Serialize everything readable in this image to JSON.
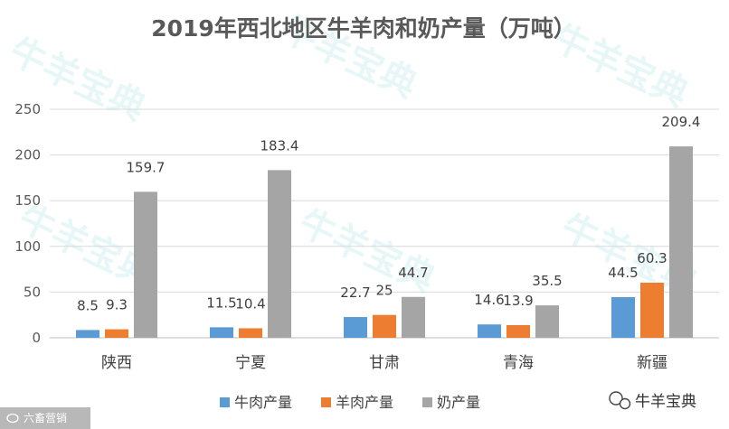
{
  "chart_data": {
    "type": "bar",
    "title": "2019年西北地区牛羊肉和奶产量（万吨）",
    "categories": [
      "陕西",
      "宁夏",
      "甘肃",
      "青海",
      "新疆"
    ],
    "series": [
      {
        "name": "牛肉产量",
        "color": "#5B9BD5",
        "values": [
          8.5,
          11.5,
          22.7,
          14.6,
          44.5
        ]
      },
      {
        "name": "羊肉产量",
        "color": "#ED7D31",
        "values": [
          9.3,
          10.4,
          25,
          13.9,
          60.3
        ]
      },
      {
        "name": "奶产量",
        "color": "#A5A5A5",
        "values": [
          159.7,
          183.4,
          44.7,
          35.5,
          209.4
        ]
      }
    ],
    "ylim": [
      0,
      250
    ],
    "yticks": [
      0,
      50,
      100,
      150,
      200,
      250
    ],
    "grid": true,
    "legend": "bottom",
    "xlabel": "",
    "ylabel": ""
  },
  "watermark": "牛羊宝典",
  "brand": {
    "name": "牛羊宝典",
    "icon": "wechat-icon"
  },
  "credit": {
    "text": "六畜营销",
    "icon": "weibo-icon"
  }
}
